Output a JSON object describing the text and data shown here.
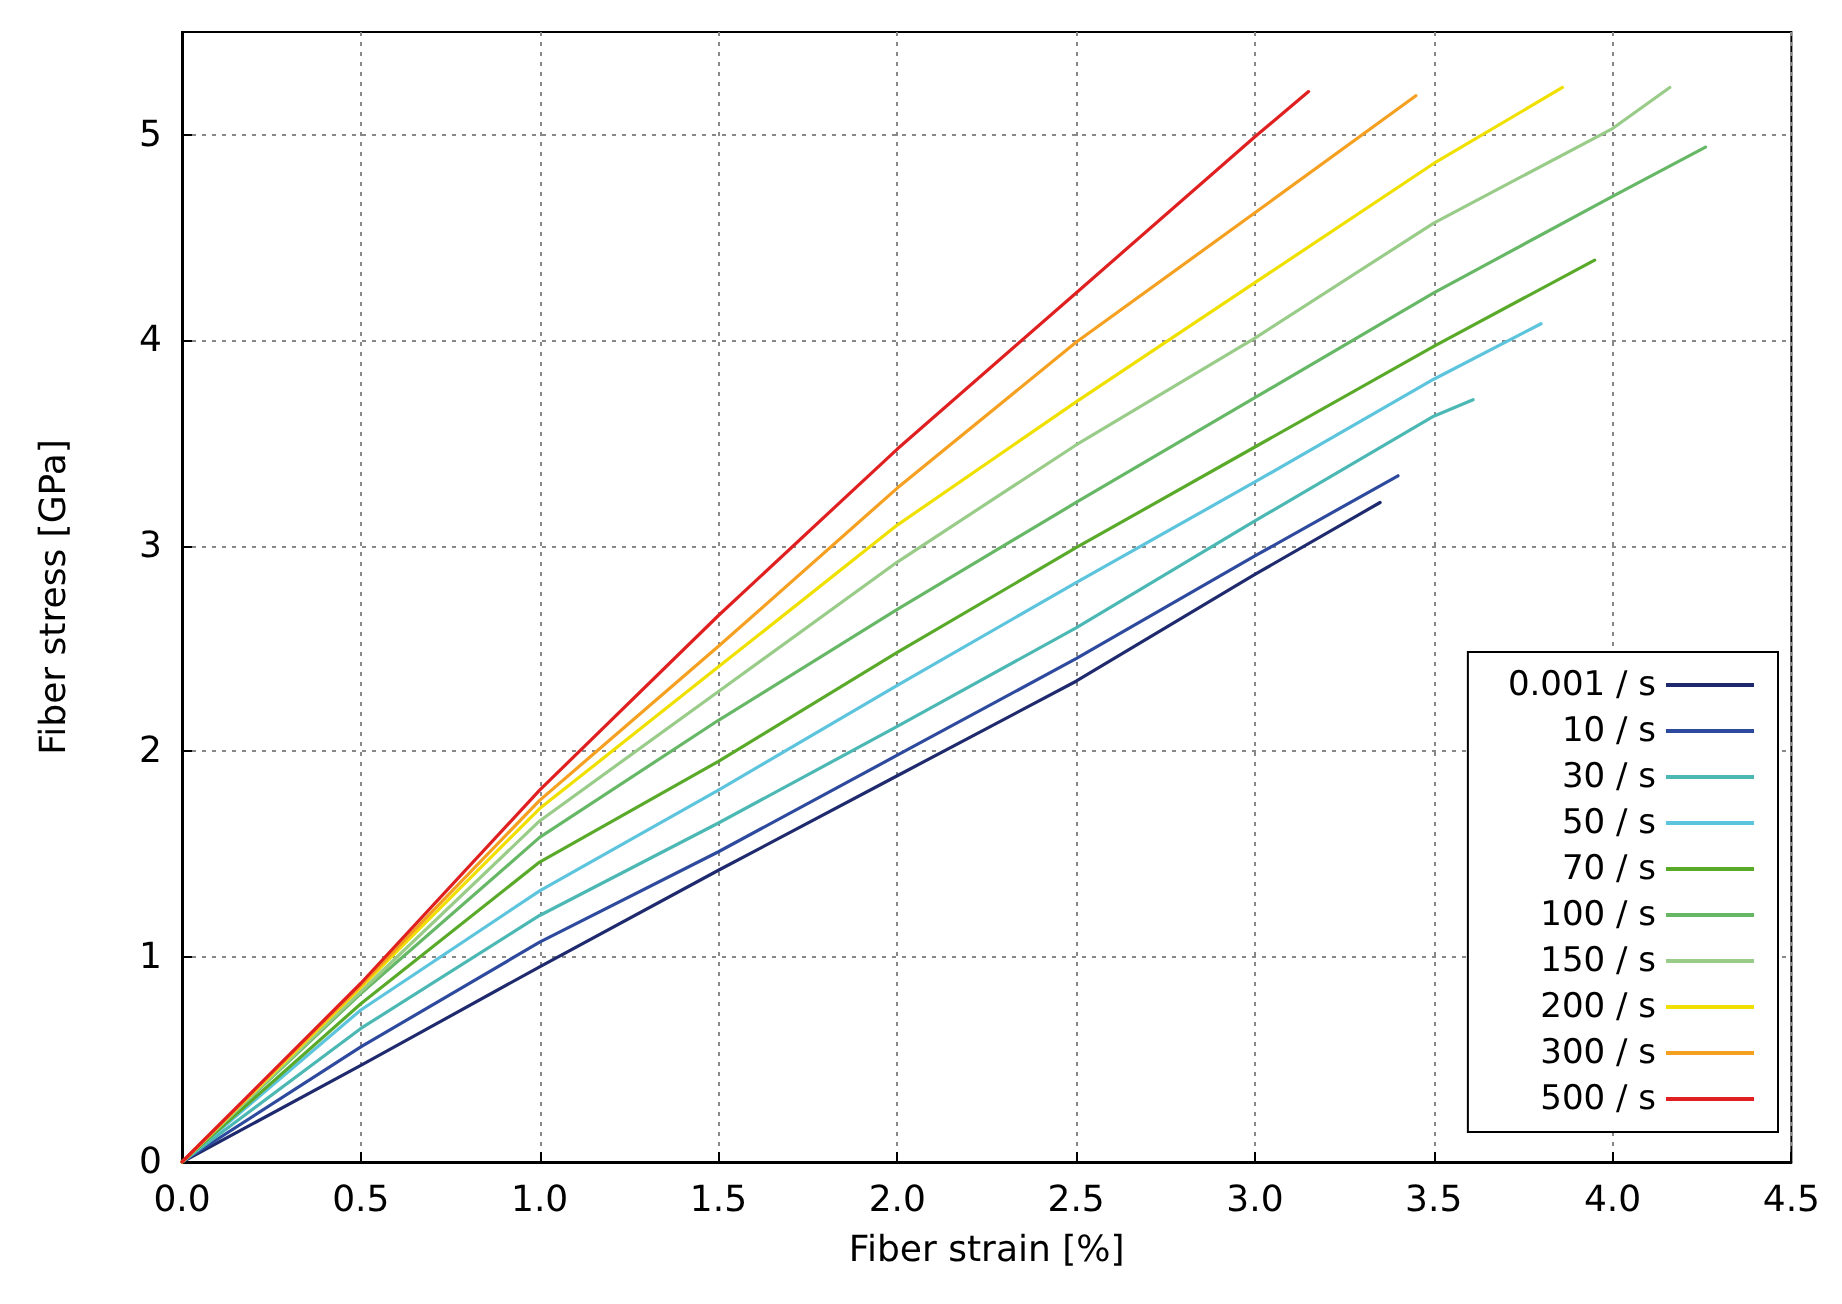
{
  "chart_data": {
    "type": "line",
    "xlabel": "Fiber strain [%]",
    "ylabel": "Fiber stress [GPa]",
    "xlim": [
      0,
      4.5
    ],
    "ylim": [
      0,
      5.5
    ],
    "xticks": [
      {
        "value": 0,
        "label": "0.0"
      },
      0.5,
      {
        "value": 1,
        "label": "1.0"
      },
      1.5,
      {
        "value": 2,
        "label": "2.0"
      },
      2.5,
      {
        "value": 3,
        "label": "3.0"
      },
      3.5,
      {
        "value": 4,
        "label": "4.0"
      },
      4.5
    ],
    "yticks": [
      0,
      1,
      2,
      3,
      4,
      5
    ],
    "grid": true,
    "legend": "bottom right",
    "marker": "none",
    "line_style": "solid",
    "series": [
      {
        "name": "0.001 / s",
        "color": "#1f2a6e",
        "x": [
          0,
          0.5,
          1,
          1.5,
          2,
          2.5,
          3,
          3.35
        ],
        "values": [
          0,
          0.47,
          0.95,
          1.42,
          1.88,
          2.34,
          2.86,
          3.21
        ]
      },
      {
        "name": "10 / s",
        "color": "#2e4a9e",
        "x": [
          0,
          0.5,
          1,
          1.5,
          2,
          2.5,
          3,
          3.4
        ],
        "values": [
          0,
          0.56,
          1.07,
          1.51,
          1.98,
          2.45,
          2.95,
          3.34
        ]
      },
      {
        "name": "30 / s",
        "color": "#4bb8b4",
        "x": [
          0,
          0.5,
          1,
          1.5,
          2,
          2.5,
          3,
          3.5,
          3.61
        ],
        "values": [
          0,
          0.65,
          1.2,
          1.65,
          2.12,
          2.6,
          3.12,
          3.63,
          3.71
        ]
      },
      {
        "name": "50 / s",
        "color": "#5cc4dc",
        "x": [
          0,
          0.5,
          1,
          1.5,
          2,
          2.5,
          3,
          3.5,
          3.8
        ],
        "values": [
          0,
          0.74,
          1.32,
          1.81,
          2.32,
          2.82,
          3.31,
          3.81,
          4.08
        ]
      },
      {
        "name": "70 / s",
        "color": "#5aaa2a",
        "x": [
          0,
          0.5,
          1,
          1.5,
          2,
          2.5,
          3,
          3.5,
          3.95
        ],
        "values": [
          0,
          0.77,
          1.46,
          1.95,
          2.48,
          2.99,
          3.48,
          3.97,
          4.39
        ]
      },
      {
        "name": "100 / s",
        "color": "#66b866",
        "x": [
          0,
          0.5,
          1,
          1.5,
          2,
          2.5,
          3,
          3.5,
          4,
          4.26
        ],
        "values": [
          0,
          0.82,
          1.58,
          2.15,
          2.69,
          3.21,
          3.72,
          4.23,
          4.7,
          4.94
        ]
      },
      {
        "name": "150 / s",
        "color": "#99cc88",
        "x": [
          0,
          0.5,
          1,
          1.5,
          2,
          2.5,
          3,
          3.5,
          4,
          4.16
        ],
        "values": [
          0,
          0.83,
          1.66,
          2.29,
          2.92,
          3.49,
          4.01,
          4.57,
          5.03,
          5.23
        ]
      },
      {
        "name": "200 / s",
        "color": "#f0e000",
        "x": [
          0,
          0.5,
          1,
          1.5,
          2,
          2.5,
          3,
          3.5,
          3.86
        ],
        "values": [
          0,
          0.85,
          1.72,
          2.41,
          3.1,
          3.7,
          4.28,
          4.86,
          5.23
        ]
      },
      {
        "name": "300 / s",
        "color": "#f5a020",
        "x": [
          0,
          0.5,
          1,
          1.5,
          2,
          2.5,
          3,
          3.45
        ],
        "values": [
          0,
          0.86,
          1.76,
          2.51,
          3.28,
          3.99,
          4.62,
          5.19
        ]
      },
      {
        "name": "500 / s",
        "color": "#e02020",
        "x": [
          0,
          0.5,
          1,
          1.5,
          2,
          2.5,
          3,
          3.15
        ],
        "values": [
          0,
          0.87,
          1.81,
          2.66,
          3.47,
          4.23,
          4.99,
          5.21
        ]
      }
    ]
  }
}
